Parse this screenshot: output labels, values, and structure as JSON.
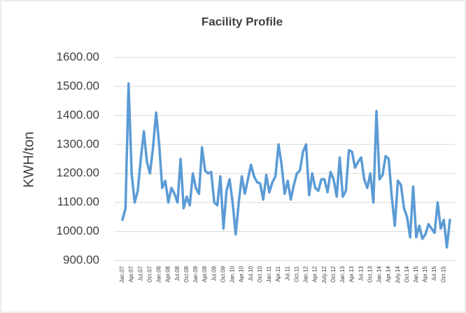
{
  "chart_data": {
    "type": "line",
    "title": "Facility Profile",
    "y_label": "KWH/ton",
    "categories": [
      "Jan.07",
      null,
      null,
      "Apr.07",
      null,
      null,
      "Jul.07",
      null,
      null,
      "Oct.07",
      null,
      null,
      "Jan.08",
      null,
      null,
      "Apr.08",
      null,
      null,
      "Jul.08",
      null,
      null,
      "Oct.08",
      null,
      null,
      "Jan.09",
      null,
      null,
      "Apr.09",
      null,
      null,
      "Jul.09",
      null,
      null,
      "Oct.09",
      null,
      null,
      "Jan.10",
      null,
      null,
      "Apr.10",
      null,
      null,
      "Jul.10",
      null,
      null,
      "Oct.10",
      null,
      null,
      "Jan.11",
      null,
      null,
      "Apr.11",
      null,
      null,
      "Jul.11",
      null,
      null,
      "Oct.11",
      null,
      null,
      "Jan.12",
      null,
      null,
      "Apr.12",
      null,
      null,
      "July.12",
      null,
      null,
      "Oct.12",
      null,
      null,
      "Jan.13",
      null,
      null,
      "Apr.13",
      null,
      null,
      "Jul.13",
      null,
      null,
      "Oct.13",
      null,
      null,
      "Jan.14",
      null,
      null,
      "Apr.14",
      null,
      null,
      "July.14",
      null,
      null,
      "Oct.14",
      null,
      null,
      "Jan.15",
      null,
      null,
      "Apr.15",
      null,
      null,
      "Jul.15",
      null,
      null,
      "Oct.15",
      null,
      null
    ],
    "series": [
      {
        "color": "#5b9bd5",
        "values": [
          1040,
          1080,
          1510,
          1200,
          1100,
          1140,
          1250,
          1345,
          1240,
          1200,
          1290,
          1410,
          1300,
          1150,
          1175,
          1100,
          1150,
          1130,
          1100,
          1250,
          1080,
          1120,
          1090,
          1200,
          1150,
          1130,
          1290,
          1210,
          1200,
          1205,
          1100,
          1090,
          1190,
          1010,
          1140,
          1180,
          1100,
          990,
          1100,
          1190,
          1130,
          1180,
          1230,
          1190,
          1170,
          1165,
          1110,
          1195,
          1135,
          1170,
          1190,
          1300,
          1230,
          1130,
          1175,
          1110,
          1160,
          1200,
          1210,
          1275,
          1300,
          1125,
          1200,
          1150,
          1140,
          1180,
          1180,
          1135,
          1205,
          1180,
          1120,
          1255,
          1120,
          1140,
          1280,
          1275,
          1220,
          1240,
          1255,
          1180,
          1150,
          1200,
          1100,
          1415,
          1180,
          1195,
          1260,
          1250,
          1120,
          1020,
          1175,
          1160,
          1080,
          1050,
          980,
          1155,
          980,
          1020,
          975,
          990,
          1025,
          1010,
          995,
          1100,
          1010,
          1040,
          945,
          1040
        ]
      }
    ],
    "ylim": [
      900,
      1600
    ],
    "yticks": [
      {
        "value": 900,
        "label": "900.00"
      },
      {
        "value": 1000,
        "label": "1000.00"
      },
      {
        "value": 1100,
        "label": "1100.00"
      },
      {
        "value": 1200,
        "label": "1200.00"
      },
      {
        "value": 1300,
        "label": "1300.00"
      },
      {
        "value": 1400,
        "label": "1400.00"
      },
      {
        "value": 1500,
        "label": "1500.00"
      },
      {
        "value": 1600,
        "label": "1600.00"
      }
    ],
    "grid": true
  }
}
